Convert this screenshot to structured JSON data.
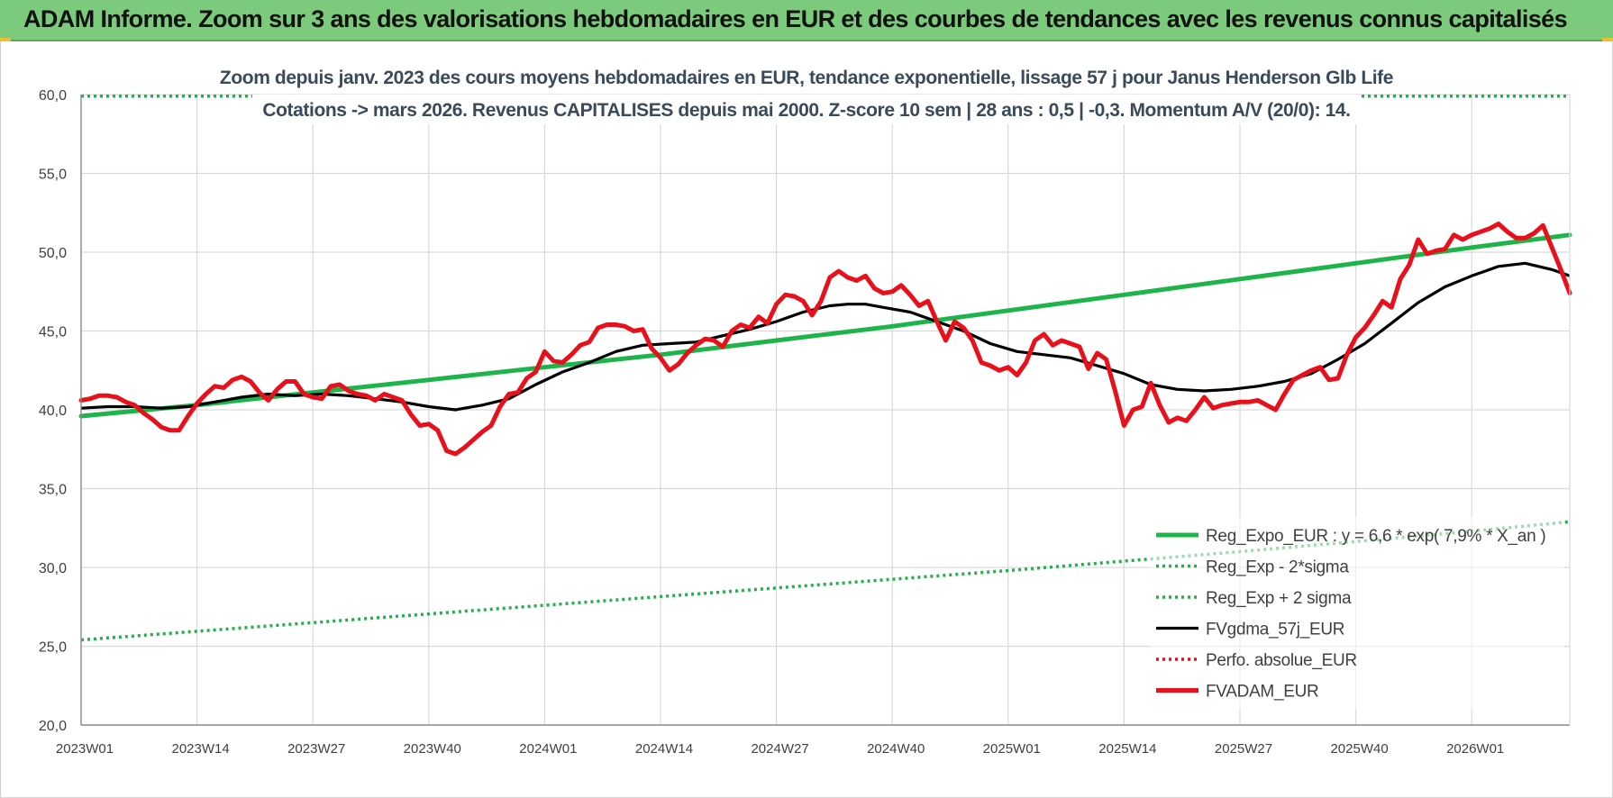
{
  "banner": {
    "title": "ADAM Informe. Zoom sur 3 ans des valorisations hebdomadaires en EUR et des courbes de tendances avec les revenus connus capitalisés"
  },
  "colors": {
    "banner_bg": "#7ccb7c",
    "trend_green": "#1db44a",
    "sigma_green": "#22b04b",
    "fvgdma_black": "#000000",
    "perfo_red": "#e0101a",
    "fvadam_red": "#e8101a",
    "grid": "#d9d9d9",
    "axis_text": "#404040",
    "title_text": "#3a4a5a"
  },
  "chart_data": {
    "type": "line",
    "title_lines": [
      "Zoom depuis janv. 2023 des cours moyens hebdomadaires en EUR, tendance exponentielle, lissage 57 j pour Janus Henderson Glb Life",
      "Cotations -> mars 2026. Revenus CAPITALISES depuis mai 2000. Z-score 10 sem | 28 ans : 0,5 | -0,3. Momentum A/V (20/0): 14."
    ],
    "ylim": [
      20,
      60
    ],
    "yticks": [
      "20,0",
      "25,0",
      "30,0",
      "35,0",
      "40,0",
      "45,0",
      "50,0",
      "55,0",
      "60,0"
    ],
    "ytick_values": [
      20,
      25,
      30,
      35,
      40,
      45,
      50,
      55,
      60
    ],
    "xlim": [
      0,
      167
    ],
    "xticks": [
      {
        "label": "2023W01",
        "x": 0
      },
      {
        "label": "2023W14",
        "x": 13
      },
      {
        "label": "2023W27",
        "x": 26
      },
      {
        "label": "2023W40",
        "x": 39
      },
      {
        "label": "2024W01",
        "x": 52
      },
      {
        "label": "2024W14",
        "x": 65
      },
      {
        "label": "2024W27",
        "x": 78
      },
      {
        "label": "2024W40",
        "x": 91
      },
      {
        "label": "2025W01",
        "x": 104
      },
      {
        "label": "2025W14",
        "x": 117
      },
      {
        "label": "2025W27",
        "x": 130
      },
      {
        "label": "2025W40",
        "x": 143
      },
      {
        "label": "2026W01",
        "x": 156
      }
    ],
    "legend": [
      {
        "label": "Reg_Expo_EUR : y = 6,6 * exp( 7,9% * X_an )",
        "style": "thick-solid",
        "color": "#1db44a"
      },
      {
        "label": "Reg_Exp - 2*sigma",
        "style": "dotted",
        "color": "#22b04b"
      },
      {
        "label": "Reg_Exp + 2 sigma",
        "style": "dotted",
        "color": "#22b04b"
      },
      {
        "label": "FVgdma_57j_EUR",
        "style": "solid",
        "color": "#000000"
      },
      {
        "label": "Perfo. absolue_EUR",
        "style": "dotted",
        "color": "#e0101a"
      },
      {
        "label": "FVADAM_EUR",
        "style": "thick-solid",
        "color": "#e8101a"
      }
    ],
    "series": [
      {
        "name": "Reg_Expo_EUR",
        "style": "thick-solid",
        "color": "#1db44a",
        "points": [
          [
            0,
            39.6
          ],
          [
            13,
            40.3
          ],
          [
            26,
            41.1
          ],
          [
            39,
            41.9
          ],
          [
            52,
            42.7
          ],
          [
            65,
            43.5
          ],
          [
            78,
            44.4
          ],
          [
            91,
            45.3
          ],
          [
            104,
            46.3
          ],
          [
            117,
            47.3
          ],
          [
            130,
            48.3
          ],
          [
            143,
            49.3
          ],
          [
            156,
            50.3
          ],
          [
            167,
            51.1
          ]
        ]
      },
      {
        "name": "Reg_Exp - 2*sigma",
        "style": "dotted",
        "color": "#22b04b",
        "points": [
          [
            0,
            25.4
          ],
          [
            26,
            26.5
          ],
          [
            52,
            27.6
          ],
          [
            78,
            28.7
          ],
          [
            104,
            29.8
          ],
          [
            130,
            31.0
          ],
          [
            156,
            32.3
          ],
          [
            167,
            32.9
          ]
        ]
      },
      {
        "name": "Reg_Exp + 2 sigma",
        "style": "dotted",
        "color": "#22b04b",
        "points": [
          [
            0,
            59.9
          ],
          [
            167,
            59.9
          ]
        ]
      },
      {
        "name": "FVgdma_57j_EUR",
        "style": "solid",
        "color": "#000000",
        "points": [
          [
            0,
            40.1
          ],
          [
            3,
            40.2
          ],
          [
            6,
            40.2
          ],
          [
            9,
            40.1
          ],
          [
            12,
            40.2
          ],
          [
            15,
            40.5
          ],
          [
            18,
            40.8
          ],
          [
            21,
            41.0
          ],
          [
            24,
            40.9
          ],
          [
            27,
            41.0
          ],
          [
            30,
            40.9
          ],
          [
            33,
            40.7
          ],
          [
            36,
            40.5
          ],
          [
            39,
            40.2
          ],
          [
            42,
            40.0
          ],
          [
            45,
            40.3
          ],
          [
            48,
            40.7
          ],
          [
            51,
            41.6
          ],
          [
            54,
            42.4
          ],
          [
            57,
            43.0
          ],
          [
            60,
            43.7
          ],
          [
            63,
            44.1
          ],
          [
            66,
            44.2
          ],
          [
            69,
            44.3
          ],
          [
            72,
            44.7
          ],
          [
            75,
            45.1
          ],
          [
            78,
            45.6
          ],
          [
            81,
            46.2
          ],
          [
            84,
            46.6
          ],
          [
            86,
            46.7
          ],
          [
            88,
            46.7
          ],
          [
            90,
            46.5
          ],
          [
            93,
            46.2
          ],
          [
            96,
            45.6
          ],
          [
            99,
            45.0
          ],
          [
            102,
            44.2
          ],
          [
            105,
            43.7
          ],
          [
            108,
            43.5
          ],
          [
            111,
            43.3
          ],
          [
            114,
            42.8
          ],
          [
            117,
            42.3
          ],
          [
            120,
            41.6
          ],
          [
            123,
            41.3
          ],
          [
            126,
            41.2
          ],
          [
            129,
            41.3
          ],
          [
            132,
            41.5
          ],
          [
            135,
            41.8
          ],
          [
            138,
            42.3
          ],
          [
            141,
            43.2
          ],
          [
            144,
            44.2
          ],
          [
            147,
            45.5
          ],
          [
            150,
            46.8
          ],
          [
            153,
            47.8
          ],
          [
            156,
            48.5
          ],
          [
            159,
            49.1
          ],
          [
            162,
            49.3
          ],
          [
            165,
            48.9
          ],
          [
            167,
            48.5
          ]
        ]
      },
      {
        "name": "FVADAM_EUR",
        "style": "thick-solid",
        "color": "#e8101a",
        "points": [
          [
            0,
            40.6
          ],
          [
            1,
            40.7
          ],
          [
            2,
            40.9
          ],
          [
            3,
            40.9
          ],
          [
            4,
            40.8
          ],
          [
            5,
            40.5
          ],
          [
            6,
            40.3
          ],
          [
            7,
            39.8
          ],
          [
            8,
            39.4
          ],
          [
            9,
            38.9
          ],
          [
            10,
            38.7
          ],
          [
            11,
            38.7
          ],
          [
            12,
            39.6
          ],
          [
            13,
            40.4
          ],
          [
            14,
            41.0
          ],
          [
            15,
            41.5
          ],
          [
            16,
            41.4
          ],
          [
            17,
            41.9
          ],
          [
            18,
            42.1
          ],
          [
            19,
            41.8
          ],
          [
            20,
            41.1
          ],
          [
            21,
            40.6
          ],
          [
            22,
            41.3
          ],
          [
            23,
            41.8
          ],
          [
            24,
            41.8
          ],
          [
            25,
            41.0
          ],
          [
            26,
            40.8
          ],
          [
            27,
            40.7
          ],
          [
            28,
            41.5
          ],
          [
            29,
            41.6
          ],
          [
            30,
            41.2
          ],
          [
            31,
            41.0
          ],
          [
            32,
            40.9
          ],
          [
            33,
            40.6
          ],
          [
            34,
            41.0
          ],
          [
            35,
            40.8
          ],
          [
            36,
            40.6
          ],
          [
            37,
            39.7
          ],
          [
            38,
            39.0
          ],
          [
            39,
            39.1
          ],
          [
            40,
            38.7
          ],
          [
            41,
            37.4
          ],
          [
            42,
            37.2
          ],
          [
            43,
            37.6
          ],
          [
            44,
            38.1
          ],
          [
            45,
            38.6
          ],
          [
            46,
            39.0
          ],
          [
            47,
            40.2
          ],
          [
            48,
            41.0
          ],
          [
            49,
            41.1
          ],
          [
            50,
            42.0
          ],
          [
            51,
            42.4
          ],
          [
            52,
            43.7
          ],
          [
            53,
            43.1
          ],
          [
            54,
            43.0
          ],
          [
            55,
            43.5
          ],
          [
            56,
            44.1
          ],
          [
            57,
            44.3
          ],
          [
            58,
            45.2
          ],
          [
            59,
            45.4
          ],
          [
            60,
            45.4
          ],
          [
            61,
            45.3
          ],
          [
            62,
            45.0
          ],
          [
            63,
            45.1
          ],
          [
            64,
            43.9
          ],
          [
            65,
            43.3
          ],
          [
            66,
            42.5
          ],
          [
            67,
            42.9
          ],
          [
            68,
            43.6
          ],
          [
            69,
            44.1
          ],
          [
            70,
            44.5
          ],
          [
            71,
            44.4
          ],
          [
            72,
            44.0
          ],
          [
            73,
            45.0
          ],
          [
            74,
            45.4
          ],
          [
            75,
            45.2
          ],
          [
            76,
            45.9
          ],
          [
            77,
            45.5
          ],
          [
            78,
            46.7
          ],
          [
            79,
            47.3
          ],
          [
            80,
            47.2
          ],
          [
            81,
            46.9
          ],
          [
            82,
            46.0
          ],
          [
            83,
            46.9
          ],
          [
            84,
            48.4
          ],
          [
            85,
            48.8
          ],
          [
            86,
            48.4
          ],
          [
            87,
            48.2
          ],
          [
            88,
            48.5
          ],
          [
            89,
            47.7
          ],
          [
            90,
            47.4
          ],
          [
            91,
            47.5
          ],
          [
            92,
            47.9
          ],
          [
            93,
            47.3
          ],
          [
            94,
            46.6
          ],
          [
            95,
            46.9
          ],
          [
            96,
            45.6
          ],
          [
            97,
            44.4
          ],
          [
            98,
            45.6
          ],
          [
            99,
            45.2
          ],
          [
            100,
            44.4
          ],
          [
            101,
            43.0
          ],
          [
            102,
            42.8
          ],
          [
            103,
            42.5
          ],
          [
            104,
            42.7
          ],
          [
            105,
            42.2
          ],
          [
            106,
            43.0
          ],
          [
            107,
            44.4
          ],
          [
            108,
            44.8
          ],
          [
            109,
            44.1
          ],
          [
            110,
            44.4
          ],
          [
            111,
            44.2
          ],
          [
            112,
            44.0
          ],
          [
            113,
            42.6
          ],
          [
            114,
            43.6
          ],
          [
            115,
            43.2
          ],
          [
            116,
            41.2
          ],
          [
            117,
            39.0
          ],
          [
            118,
            40.0
          ],
          [
            119,
            40.2
          ],
          [
            120,
            41.7
          ],
          [
            121,
            40.3
          ],
          [
            122,
            39.2
          ],
          [
            123,
            39.5
          ],
          [
            124,
            39.3
          ],
          [
            125,
            40.0
          ],
          [
            126,
            40.8
          ],
          [
            127,
            40.1
          ],
          [
            128,
            40.3
          ],
          [
            129,
            40.4
          ],
          [
            130,
            40.5
          ],
          [
            131,
            40.5
          ],
          [
            132,
            40.6
          ],
          [
            133,
            40.3
          ],
          [
            134,
            40.0
          ],
          [
            135,
            41.0
          ],
          [
            136,
            41.9
          ],
          [
            137,
            42.2
          ],
          [
            138,
            42.5
          ],
          [
            139,
            42.7
          ],
          [
            140,
            41.9
          ],
          [
            141,
            42.0
          ],
          [
            142,
            43.5
          ],
          [
            143,
            44.6
          ],
          [
            144,
            45.2
          ],
          [
            145,
            46.0
          ],
          [
            146,
            46.9
          ],
          [
            147,
            46.5
          ],
          [
            148,
            48.3
          ],
          [
            149,
            49.2
          ],
          [
            150,
            50.8
          ],
          [
            151,
            49.9
          ],
          [
            152,
            50.1
          ],
          [
            153,
            50.2
          ],
          [
            154,
            51.1
          ],
          [
            155,
            50.8
          ],
          [
            156,
            51.1
          ],
          [
            157,
            51.3
          ],
          [
            158,
            51.5
          ],
          [
            159,
            51.8
          ],
          [
            160,
            51.3
          ],
          [
            161,
            50.9
          ],
          [
            162,
            50.9
          ],
          [
            163,
            51.2
          ],
          [
            164,
            51.7
          ],
          [
            165,
            50.3
          ],
          [
            166,
            48.9
          ],
          [
            167,
            47.4
          ]
        ]
      }
    ]
  }
}
